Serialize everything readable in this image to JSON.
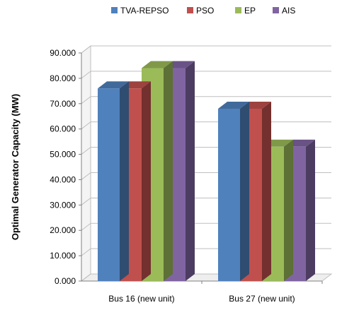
{
  "chart_data": {
    "type": "bar",
    "categories": [
      "Bus 16 (new unit)",
      "Bus 27 (new unit)"
    ],
    "series": [
      {
        "name": "TVA-REPSO",
        "values": [
          76,
          68
        ],
        "color": "#4F81BD"
      },
      {
        "name": "PSO",
        "values": [
          76,
          68
        ],
        "color": "#C0504D"
      },
      {
        "name": "EP",
        "values": [
          84,
          53
        ],
        "color": "#9BBB59"
      },
      {
        "name": "AIS",
        "values": [
          84,
          53
        ],
        "color": "#8064A2"
      }
    ],
    "title": "",
    "xlabel": "",
    "ylabel": "Optimal Generator Capacity (MW)",
    "ylim": [
      0,
      90
    ],
    "yticks": [
      "0.000",
      "10.000",
      "20.000",
      "30.000",
      "40.000",
      "50.000",
      "60.000",
      "70.000",
      "80.000",
      "90.000"
    ],
    "legend_position": "top",
    "grid": true
  }
}
